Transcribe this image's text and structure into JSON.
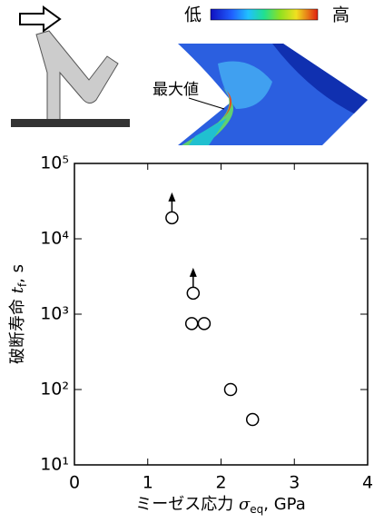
{
  "chart_data": {
    "type": "scatter",
    "illustration": {
      "low": "低",
      "high": "高",
      "max_label": "最大値"
    },
    "x_label": {
      "text": "ミーゼス応力",
      "symbol": "σ",
      "subscript": "eq",
      "unit": ", GPa"
    },
    "y_label": {
      "text": "破断寿命",
      "symbol": "t",
      "subscript": "f",
      "unit": ", s"
    },
    "x": [
      1.33,
      1.62,
      1.6,
      1.77,
      2.13,
      2.43
    ],
    "values": [
      19000,
      1900,
      750,
      750,
      100,
      40
    ],
    "runout": [
      true,
      true,
      false,
      false,
      false,
      false
    ],
    "xlim": [
      0,
      4
    ],
    "xticks": [
      0,
      1,
      2,
      3,
      4
    ],
    "ylim": [
      10,
      100000
    ],
    "log_y": true,
    "yticks": [
      {
        "value": 10,
        "label": "10¹"
      },
      {
        "value": 100,
        "label": "10²"
      },
      {
        "value": 1000,
        "label": "10³"
      },
      {
        "value": 10000,
        "label": "10⁴"
      },
      {
        "value": 100000,
        "label": "10⁵"
      }
    ],
    "color": "#000000"
  }
}
